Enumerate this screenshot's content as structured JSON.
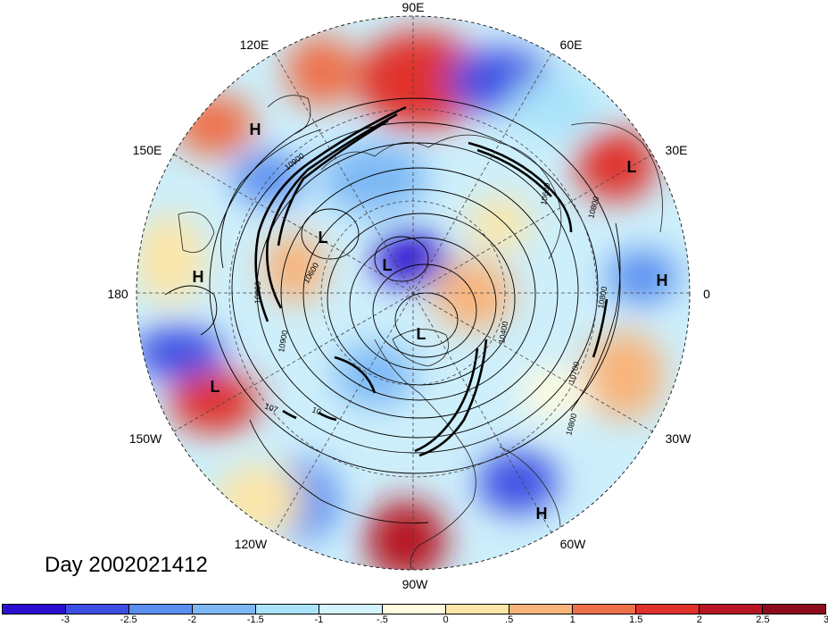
{
  "map": {
    "title": "Day 2002021412",
    "projection": "north-polar-stereographic",
    "longitude_labels": [
      {
        "label": "90E"
      },
      {
        "label": "60E"
      },
      {
        "label": "30E"
      },
      {
        "label": "0"
      },
      {
        "label": "30W"
      },
      {
        "label": "60W"
      },
      {
        "label": "90W"
      },
      {
        "label": "120W"
      },
      {
        "label": "150W"
      },
      {
        "label": "180"
      },
      {
        "label": "150E"
      },
      {
        "label": "120E"
      }
    ],
    "pressure_centers": [
      {
        "type": "H",
        "region": "northeast-asia"
      },
      {
        "type": "L",
        "region": "europe-mediterranean"
      },
      {
        "type": "L",
        "region": "east-siberia"
      },
      {
        "type": "L",
        "region": "arctic-ocean"
      },
      {
        "type": "H",
        "region": "north-pacific"
      },
      {
        "type": "H",
        "region": "eastern-atlantic"
      },
      {
        "type": "L",
        "region": "canadian-arctic"
      },
      {
        "type": "L",
        "region": "gulf-of-alaska"
      },
      {
        "type": "H",
        "region": "western-atlantic"
      }
    ],
    "contour_labels": [
      "10900",
      "10800",
      "10800",
      "10600",
      "10600",
      "10400",
      "10700",
      "10800",
      "10800",
      "10900",
      "107",
      "10"
    ]
  },
  "colorbar": {
    "colors": [
      "#2b0fd0",
      "#3d4fe3",
      "#5a8ff0",
      "#7db8f5",
      "#a8e3fa",
      "#d4f4fd",
      "#fffbe0",
      "#fde6a8",
      "#f8b47a",
      "#ee7048",
      "#e0302c",
      "#b71424",
      "#8c0b1c"
    ],
    "tick_labels": [
      "-3",
      "-2.5",
      "-2",
      "-1.5",
      "-1",
      "-.5",
      "0",
      ".5",
      "1",
      "1.5",
      "2",
      "2.5",
      "3"
    ]
  }
}
